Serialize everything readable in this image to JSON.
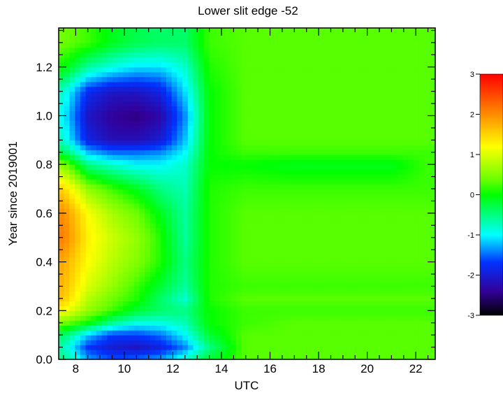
{
  "chart_data": {
    "type": "heatmap",
    "title": "Lower slit edge -52",
    "xlabel": "UTC",
    "ylabel": "Year since 2019001",
    "xlim": [
      7.3,
      22.8
    ],
    "ylim": [
      0.0,
      1.36
    ],
    "xticks": [
      8,
      10,
      12,
      14,
      16,
      18,
      20,
      22
    ],
    "xtick_labels": [
      "8",
      "10",
      "12",
      "14",
      "16",
      "18",
      "20",
      "22"
    ],
    "yticks": [
      0.0,
      0.2,
      0.4,
      0.6,
      0.8,
      1.0,
      1.2
    ],
    "ytick_labels": [
      "0.0",
      "0.2",
      "0.4",
      "0.6",
      "0.8",
      "1.0",
      "1.2"
    ],
    "colorbar": {
      "range": [
        -3,
        3
      ],
      "ticks": [
        3,
        2,
        1,
        0,
        -1,
        -2,
        -3
      ],
      "tick_labels": [
        "3",
        "2",
        "1",
        "0",
        "-1",
        "-2",
        "-3"
      ],
      "colormap": "rainbow"
    },
    "x": [
      7.5,
      8.5,
      9.5,
      10.5,
      11.5,
      12.5,
      13.5,
      15,
      17,
      19,
      21,
      22.5
    ],
    "y": [
      0.0,
      0.05,
      0.1,
      0.15,
      0.2,
      0.25,
      0.3,
      0.4,
      0.5,
      0.6,
      0.7,
      0.8,
      0.85,
      0.9,
      1.0,
      1.1,
      1.2,
      1.3
    ],
    "z": [
      [
        -0.5,
        -1.3,
        -1.6,
        -1.5,
        -1.3,
        -0.8,
        -0.2,
        0.3,
        0.3,
        0.3,
        0.3,
        0.3
      ],
      [
        -0.7,
        -1.7,
        -2.0,
        -2.1,
        -1.9,
        -1.4,
        -0.5,
        0.3,
        0.3,
        0.3,
        0.3,
        0.3
      ],
      [
        -0.4,
        -1.2,
        -1.7,
        -1.7,
        -1.5,
        -1.0,
        -0.2,
        0.3,
        0.3,
        0.3,
        0.3,
        0.3
      ],
      [
        0.4,
        0.0,
        -0.6,
        -0.9,
        -0.9,
        -0.7,
        0.0,
        0.2,
        0.3,
        0.3,
        0.3,
        0.3
      ],
      [
        1.2,
        0.6,
        0.2,
        -0.2,
        -0.4,
        -0.5,
        0.0,
        0.2,
        0.2,
        0.2,
        0.2,
        0.2
      ],
      [
        1.6,
        0.8,
        0.4,
        0.1,
        -0.4,
        -0.8,
        0.1,
        0.3,
        0.3,
        0.3,
        0.3,
        0.3
      ],
      [
        1.7,
        1.0,
        0.6,
        0.2,
        -0.2,
        -0.6,
        0.1,
        0.2,
        0.2,
        0.2,
        0.2,
        0.2
      ],
      [
        1.8,
        1.2,
        0.8,
        0.5,
        0.1,
        -0.5,
        0.1,
        0.3,
        0.3,
        0.3,
        0.3,
        0.3
      ],
      [
        2.1,
        1.3,
        0.9,
        0.6,
        0.1,
        -0.6,
        0.1,
        0.3,
        0.3,
        0.3,
        0.3,
        0.3
      ],
      [
        2.0,
        1.2,
        0.7,
        0.4,
        -0.1,
        -0.6,
        0.1,
        0.3,
        0.3,
        0.3,
        0.3,
        0.3
      ],
      [
        1.5,
        0.6,
        0.2,
        -0.1,
        -0.5,
        -0.7,
        0.1,
        0.2,
        0.2,
        0.2,
        0.2,
        0.2
      ],
      [
        0.5,
        -0.5,
        -0.8,
        -1.0,
        -1.0,
        -0.8,
        0.0,
        0.0,
        -0.1,
        -0.1,
        -0.1,
        0.2
      ],
      [
        -0.3,
        -1.2,
        -1.5,
        -1.5,
        -1.4,
        -1.0,
        0.0,
        0.2,
        0.2,
        0.2,
        0.2,
        0.2
      ],
      [
        -0.8,
        -1.9,
        -2.2,
        -2.2,
        -2.0,
        -1.2,
        0.0,
        0.3,
        0.3,
        0.3,
        0.3,
        0.3
      ],
      [
        -1.0,
        -2.1,
        -2.4,
        -2.5,
        -2.3,
        -1.4,
        0.0,
        0.3,
        0.3,
        0.3,
        0.3,
        0.3
      ],
      [
        -0.8,
        -1.8,
        -2.1,
        -2.1,
        -1.9,
        -1.1,
        0.0,
        0.3,
        0.3,
        0.3,
        0.3,
        0.3
      ],
      [
        0.0,
        -0.6,
        -0.9,
        -1.1,
        -1.1,
        -0.8,
        0.1,
        0.3,
        0.3,
        0.3,
        0.3,
        0.3
      ],
      [
        0.4,
        0.2,
        -0.1,
        -0.3,
        -0.4,
        -0.4,
        0.2,
        0.3,
        0.3,
        0.3,
        0.3,
        0.3
      ]
    ]
  }
}
